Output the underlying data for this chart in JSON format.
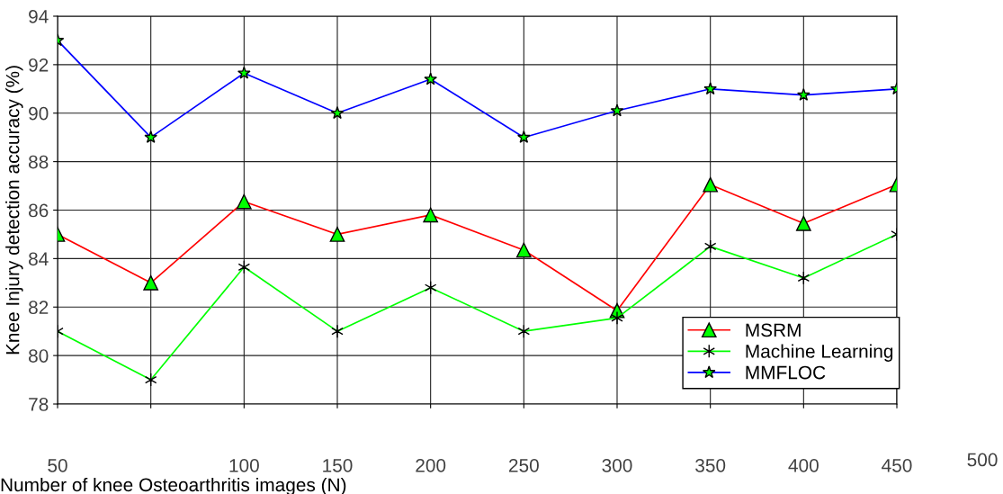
{
  "chart_data": {
    "type": "line",
    "xlabel": "Number of knee Osteoarthritis images (N)",
    "ylabel": "Knee Injury detection accuracy (%)",
    "categories": [
      "50",
      null,
      "100",
      "150",
      "200",
      "250",
      "300",
      "350",
      "400",
      "450"
    ],
    "annotations": [
      "500"
    ],
    "ylim": [
      78,
      94
    ],
    "yticks": [
      78,
      80,
      82,
      84,
      86,
      88,
      90,
      92,
      94
    ],
    "grid": true,
    "legend": "bottom right",
    "series": [
      {
        "name": "MSRM",
        "color": "#ff0000",
        "marker": "triangle",
        "values": [
          85,
          83,
          86.35,
          85,
          85.8,
          84.35,
          81.85,
          87.05,
          85.45,
          87.05
        ]
      },
      {
        "name": "Machine Learning",
        "color": "#00ff00",
        "marker": "cross",
        "values": [
          81,
          79,
          83.65,
          81,
          82.8,
          81,
          81.55,
          84.5,
          83.2,
          85
        ]
      },
      {
        "name": "MMFLOC",
        "color": "#0000ff",
        "marker": "star",
        "values": [
          93,
          89,
          91.65,
          90,
          91.4,
          89,
          90.1,
          91,
          90.75,
          91
        ]
      }
    ]
  }
}
